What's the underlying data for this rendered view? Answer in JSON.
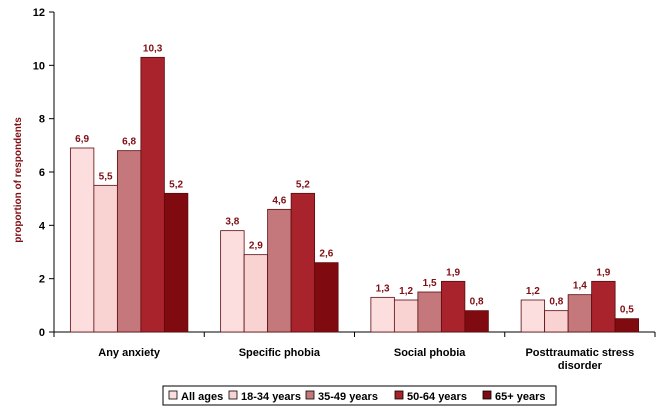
{
  "chart_data": {
    "type": "bar",
    "categories": [
      "Any anxiety",
      "Specific phobia",
      "Social phobia",
      "Posttraumatic stress disorder"
    ],
    "category_lines": [
      [
        "Any anxiety"
      ],
      [
        "Specific phobia"
      ],
      [
        "Social phobia"
      ],
      [
        "Posttraumatic stress",
        "disorder"
      ]
    ],
    "series": [
      {
        "name": "All ages",
        "values": [
          6.9,
          3.8,
          1.3,
          1.2
        ],
        "labels": [
          "6,9",
          "3,8",
          "1,3",
          "1,2"
        ],
        "color": "#fcdede"
      },
      {
        "name": "18-34 years",
        "values": [
          5.5,
          2.9,
          1.2,
          0.8
        ],
        "labels": [
          "5,5",
          "2,9",
          "1,2",
          "0,8"
        ],
        "color": "#f9d2d2"
      },
      {
        "name": "35-49 years",
        "values": [
          6.8,
          4.6,
          1.5,
          1.4
        ],
        "labels": [
          "6,8",
          "4,6",
          "1,5",
          "1,4"
        ],
        "color": "#c4787b"
      },
      {
        "name": "50-64 years",
        "values": [
          10.3,
          5.2,
          1.9,
          1.9
        ],
        "labels": [
          "10,3",
          "5,2",
          "1,9",
          "1,9"
        ],
        "color": "#a8232b"
      },
      {
        "name": "65+ years",
        "values": [
          5.2,
          2.6,
          0.8,
          0.5
        ],
        "labels": [
          "5,2",
          "2,6",
          "0,8",
          "0,5"
        ],
        "color": "#7f0a10"
      }
    ],
    "ylabel": "proportion of respondents",
    "xlabel": "",
    "ylim": [
      0,
      12
    ],
    "yticks": [
      "0",
      "2",
      "4",
      "6",
      "8",
      "10",
      "12"
    ],
    "grid": false,
    "legend_position": "bottom"
  }
}
